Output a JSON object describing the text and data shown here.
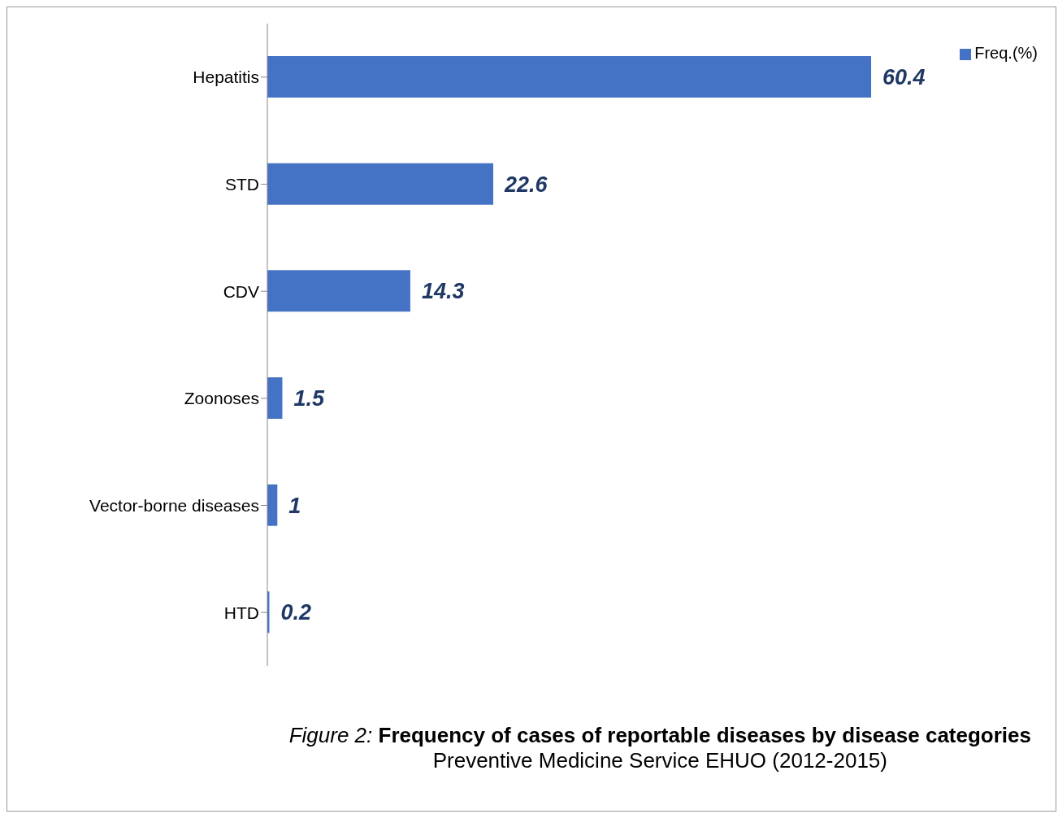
{
  "chart_data": {
    "type": "bar",
    "orientation": "horizontal",
    "title": "Figure 2: Frequency of cases of reportable diseases  by disease categories",
    "subtitle": "Preventive Medicine Service EHUO (2012-2015)",
    "categories": [
      "Hepatitis",
      "STD",
      "CDV",
      "Zoonoses",
      "Vector-borne diseases",
      "HTD"
    ],
    "series": [
      {
        "name": "Freq.(%)",
        "color": "#4472c4",
        "values": [
          60.4,
          22.6,
          14.3,
          1.5,
          1,
          0.2
        ]
      }
    ],
    "data_labels": true,
    "legend": "top right",
    "grid": false
  }
}
